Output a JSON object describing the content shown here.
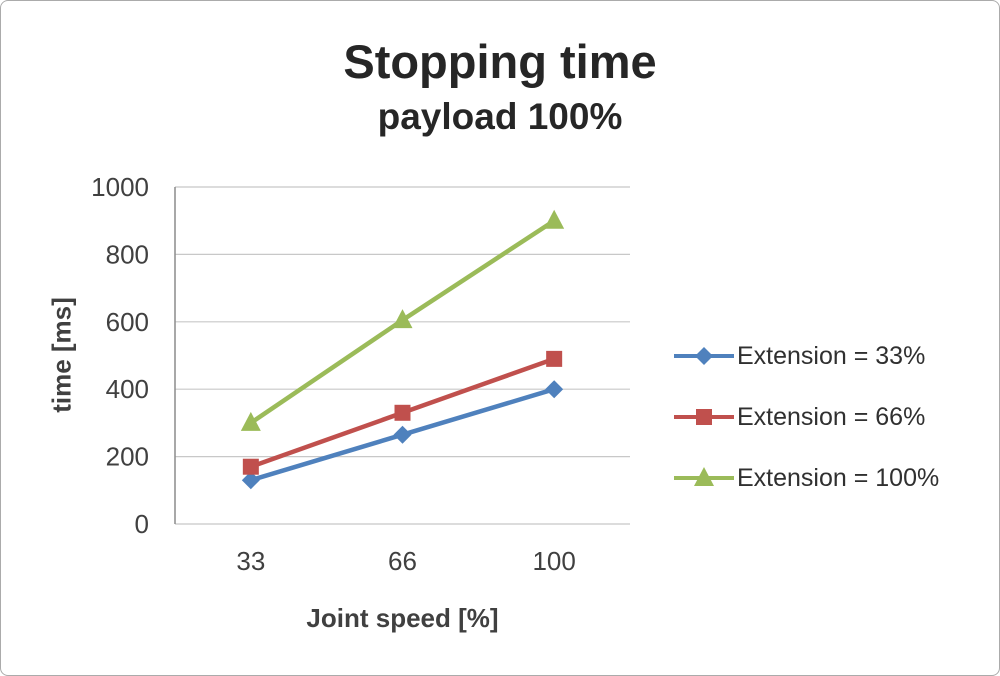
{
  "chart_data": {
    "type": "line",
    "title": "Stopping time",
    "subtitle": "payload 100%",
    "xlabel": "Joint speed [%]",
    "ylabel": "time [ms]",
    "categories": [
      "33",
      "66",
      "100"
    ],
    "yticks": [
      0,
      200,
      400,
      600,
      800,
      1000
    ],
    "ylim": [
      0,
      1000
    ],
    "grid": true,
    "legend_position": "right",
    "series": [
      {
        "name": "Extension = 33%",
        "values": [
          130,
          265,
          400
        ],
        "color": "#4f81bd",
        "marker": "diamond"
      },
      {
        "name": "Extension = 66%",
        "values": [
          170,
          330,
          490
        ],
        "color": "#c0504d",
        "marker": "square"
      },
      {
        "name": "Extension = 100%",
        "values": [
          300,
          605,
          900
        ],
        "color": "#9bbb59",
        "marker": "triangle"
      }
    ],
    "colors": {
      "gridline": "#c8c8c8",
      "axis_line": "#8c8c8c",
      "text": "#404040"
    }
  }
}
